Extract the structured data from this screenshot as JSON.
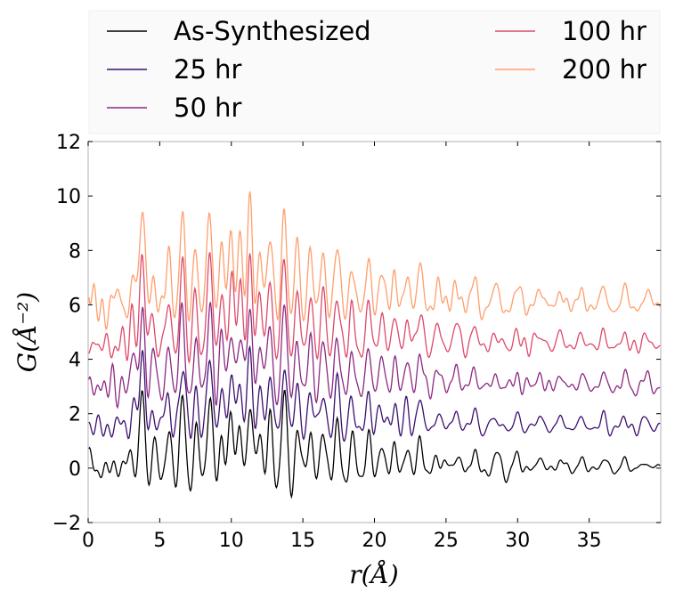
{
  "chart_data": {
    "type": "line",
    "title": "",
    "xlabel": "r(Å)",
    "ylabel": "G(Å⁻²)",
    "xlim": [
      0,
      40
    ],
    "ylim": [
      -2,
      12
    ],
    "xticks": [
      "0",
      "5",
      "10",
      "15",
      "20",
      "25",
      "30",
      "35"
    ],
    "yticks": [
      "−2",
      "0",
      "2",
      "4",
      "6",
      "8",
      "10",
      "12"
    ],
    "grid": false,
    "legend_position": "top, above plot, two columns",
    "series": [
      {
        "name": "As-Synthesized",
        "offset": 0.0,
        "color": "#000000"
      },
      {
        "name": "25 hr",
        "offset": 1.5,
        "color": "#3b0f70"
      },
      {
        "name": "50 hr",
        "offset": 3.0,
        "color": "#8c2981"
      },
      {
        "name": "100 hr",
        "offset": 4.5,
        "color": "#de4968"
      },
      {
        "name": "200 hr",
        "offset": 6.0,
        "color": "#fe9f6d"
      }
    ],
    "peaks": [
      {
        "r": 3.1,
        "height": 0.8
      },
      {
        "r": 3.8,
        "height": 2.6
      },
      {
        "r": 4.5,
        "height": 0.9
      },
      {
        "r": 5.6,
        "height": 1.2
      },
      {
        "r": 6.6,
        "height": 2.4
      },
      {
        "r": 7.5,
        "height": 1.3
      },
      {
        "r": 8.5,
        "height": 2.6
      },
      {
        "r": 9.3,
        "height": 1.5
      },
      {
        "r": 10.0,
        "height": 2.0
      },
      {
        "r": 10.6,
        "height": 1.8
      },
      {
        "r": 11.3,
        "height": 2.6
      },
      {
        "r": 12.0,
        "height": 1.6
      },
      {
        "r": 12.7,
        "height": 1.8
      },
      {
        "r": 13.7,
        "height": 2.4
      },
      {
        "r": 14.6,
        "height": 1.5
      },
      {
        "r": 15.5,
        "height": 1.3
      },
      {
        "r": 16.4,
        "height": 1.4
      },
      {
        "r": 17.4,
        "height": 1.5
      },
      {
        "r": 18.4,
        "height": 1.0
      },
      {
        "r": 19.6,
        "height": 1.1
      },
      {
        "r": 20.5,
        "height": 0.9
      },
      {
        "r": 21.4,
        "height": 0.8
      },
      {
        "r": 22.3,
        "height": 0.8
      },
      {
        "r": 23.2,
        "height": 1.0
      },
      {
        "r": 24.4,
        "height": 0.6
      },
      {
        "r": 25.7,
        "height": 0.7
      },
      {
        "r": 27.0,
        "height": 0.6
      },
      {
        "r": 28.5,
        "height": 0.4
      },
      {
        "r": 30.0,
        "height": 0.4
      },
      {
        "r": 31.5,
        "height": 0.45
      },
      {
        "r": 33.0,
        "height": 0.4
      },
      {
        "r": 34.5,
        "height": 0.35
      },
      {
        "r": 36.0,
        "height": 0.35
      },
      {
        "r": 37.5,
        "height": 0.3
      },
      {
        "r": 39.0,
        "height": 0.3
      }
    ]
  }
}
